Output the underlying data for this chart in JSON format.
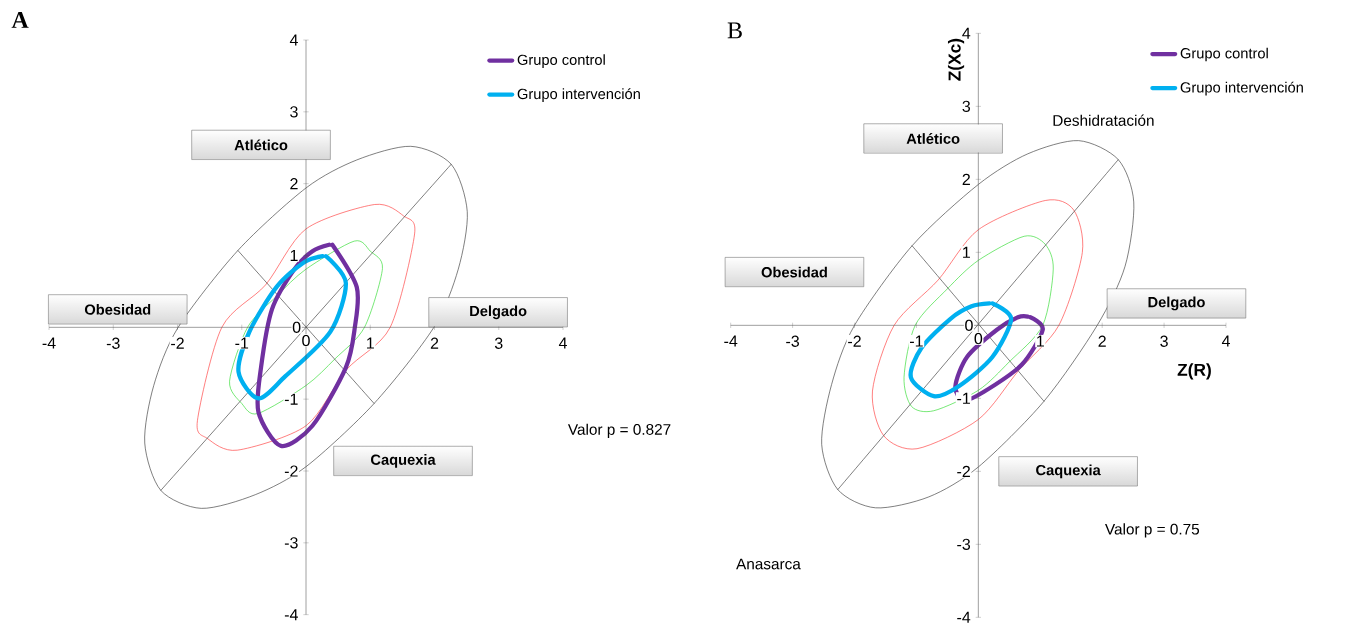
{
  "chart_data": [
    {
      "type": "line",
      "title": "A",
      "xlim": [
        -4,
        4
      ],
      "ylim": [
        -4,
        4
      ],
      "xticks": [
        -4,
        -3,
        -2,
        -1,
        0,
        1,
        2,
        3,
        4
      ],
      "yticks": [
        -4,
        -3,
        -2,
        -1,
        0,
        1,
        2,
        3,
        4
      ],
      "legend": "top right",
      "annotations": [
        "Atlético",
        "Obesidad",
        "Delgado",
        "Caquexia",
        "Valor p = 0.827"
      ],
      "series": [
        {
          "color": "#404040",
          "x": [
            -2.26,
            2.26
          ],
          "values": [
            -2.27,
            2.27
          ]
        },
        {
          "color": "#404040",
          "x": [
            -1.06,
            1.06
          ],
          "values": [
            1.07,
            -1.06
          ]
        },
        {
          "name": "Grupo control",
          "color": "#7030a0",
          "x": [
            0.41,
            0.79,
            0.76,
            0.62,
            0.1,
            -0.39,
            -0.74,
            -0.7,
            -0.53,
            -0.18,
            0.1,
            0.36
          ],
          "values": [
            1.15,
            0.56,
            0,
            -0.56,
            -1.37,
            -1.65,
            -1.18,
            -0.56,
            0.25,
            0.81,
            1.06,
            1.15
          ]
        },
        {
          "name": "Grupo intervención",
          "color": "#00b0f0",
          "x": [
            0.31,
            0.62,
            0.38,
            -0.32,
            -0.74,
            -1.05,
            -0.88,
            -0.46,
            -0.04,
            0.26
          ],
          "values": [
            0.99,
            0.62,
            -0.06,
            -0.68,
            -0.99,
            -0.62,
            -0.06,
            0.56,
            0.9,
            0.99
          ]
        }
      ]
    },
    {
      "type": "line",
      "title": "B",
      "xlabel": "Z(R)",
      "ylabel": "Z(Xc)",
      "xlim": [
        -4,
        4
      ],
      "ylim": [
        -4,
        4
      ],
      "xticks": [
        -4,
        -3,
        -2,
        -1,
        0,
        1,
        2,
        3,
        4
      ],
      "yticks": [
        -4,
        -3,
        -2,
        -1,
        0,
        1,
        2,
        3,
        4
      ],
      "legend": "top right",
      "annotations": [
        "Atlético",
        "Obesidad",
        "Delgado",
        "Caquexia",
        "Deshidratación",
        "Valor p = 0.75",
        "Anasarca"
      ],
      "series": [
        {
          "color": "#404040",
          "x": [
            -2.27,
            2.26
          ],
          "values": [
            -2.25,
            2.27
          ]
        },
        {
          "color": "#404040",
          "x": [
            -1.07,
            1.06
          ],
          "values": [
            1.09,
            -1.04
          ]
        },
        {
          "name": "Grupo control",
          "color": "#7030a0",
          "x": [
            0.84,
            1.04,
            0.7,
            0.09,
            -0.24,
            -0.37,
            -0.18,
            0.3,
            0.64,
            0.8
          ],
          "values": [
            0.11,
            -0.06,
            -0.54,
            -0.91,
            -1.03,
            -0.83,
            -0.43,
            -0.06,
            0.11,
            0.12
          ]
        },
        {
          "name": "Grupo intervención",
          "color": "#00b0f0",
          "x": [
            0.23,
            0.53,
            0.23,
            -0.31,
            -0.72,
            -1.09,
            -0.92,
            -0.45,
            -0.11,
            0.18
          ],
          "values": [
            0.3,
            0.09,
            -0.43,
            -0.83,
            -0.97,
            -0.71,
            -0.31,
            0.09,
            0.26,
            0.3
          ]
        }
      ]
    }
  ]
}
